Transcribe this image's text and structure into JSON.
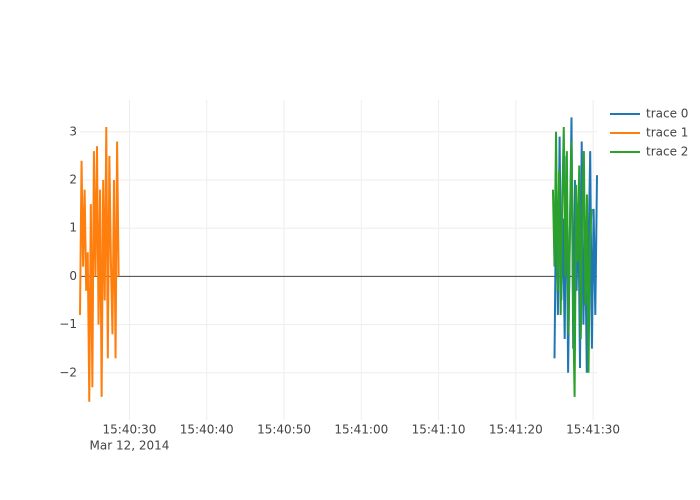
{
  "chart_data": {
    "type": "line",
    "x_date_label": "Mar 12, 2014",
    "xlim": [
      "2014-03-12T15:40:23.6",
      "2014-03-12T15:41:30.5"
    ],
    "xticks": [
      {
        "value": "2014-03-12T15:40:30",
        "label": "15:40:30"
      },
      {
        "value": "2014-03-12T15:40:40",
        "label": "15:40:40"
      },
      {
        "value": "2014-03-12T15:40:50",
        "label": "15:40:50"
      },
      {
        "value": "2014-03-12T15:41:00",
        "label": "15:41:00"
      },
      {
        "value": "2014-03-12T15:41:10",
        "label": "15:41:10"
      },
      {
        "value": "2014-03-12T15:41:20",
        "label": "15:41:20"
      },
      {
        "value": "2014-03-12T15:41:30",
        "label": "15:41:30"
      }
    ],
    "ylim": [
      -2.98,
      3.66
    ],
    "yticks": [
      {
        "value": -2,
        "label": "−2"
      },
      {
        "value": -1,
        "label": "−1"
      },
      0,
      1,
      2,
      3
    ],
    "grid": true,
    "zeroline": true,
    "legend": "top-right",
    "series": [
      {
        "name": "trace 0",
        "color": "#1f77b4",
        "x": [
          "2014-03-12T15:41:25.00",
          "2014-03-12T15:41:25.22",
          "2014-03-12T15:41:25.44",
          "2014-03-12T15:41:25.66",
          "2014-03-12T15:41:25.88",
          "2014-03-12T15:41:26.10",
          "2014-03-12T15:41:26.32",
          "2014-03-12T15:41:26.54",
          "2014-03-12T15:41:26.76",
          "2014-03-12T15:41:26.98",
          "2014-03-12T15:41:27.20",
          "2014-03-12T15:41:27.42",
          "2014-03-12T15:41:27.64",
          "2014-03-12T15:41:27.86",
          "2014-03-12T15:41:28.08",
          "2014-03-12T15:41:28.30",
          "2014-03-12T15:41:28.52",
          "2014-03-12T15:41:28.74",
          "2014-03-12T15:41:28.96",
          "2014-03-12T15:41:29.18",
          "2014-03-12T15:41:29.40",
          "2014-03-12T15:41:29.62",
          "2014-03-12T15:41:29.84",
          "2014-03-12T15:41:30.06",
          "2014-03-12T15:41:30.28",
          "2014-03-12T15:41:30.50"
        ],
        "values": [
          -1.7,
          1.8,
          -0.8,
          2.9,
          -0.5,
          1.2,
          -1.3,
          2.5,
          -2.0,
          0.8,
          3.3,
          -1.5,
          2.0,
          -0.3,
          1.5,
          -1.9,
          2.8,
          -1.0,
          1.0,
          -2.0,
          0.5,
          2.6,
          -1.5,
          1.4,
          -0.8,
          2.1
        ]
      },
      {
        "name": "trace 1",
        "color": "#ff7f0e",
        "x": [
          "2014-03-12T15:40:23.6",
          "2014-03-12T15:40:23.8",
          "2014-03-12T15:40:24.0",
          "2014-03-12T15:40:24.2",
          "2014-03-12T15:40:24.4",
          "2014-03-12T15:40:24.6",
          "2014-03-12T15:40:24.8",
          "2014-03-12T15:40:25.0",
          "2014-03-12T15:40:25.2",
          "2014-03-12T15:40:25.4",
          "2014-03-12T15:40:25.6",
          "2014-03-12T15:40:25.8",
          "2014-03-12T15:40:26.0",
          "2014-03-12T15:40:26.2",
          "2014-03-12T15:40:26.4",
          "2014-03-12T15:40:26.6",
          "2014-03-12T15:40:26.8",
          "2014-03-12T15:40:27.0",
          "2014-03-12T15:40:27.2",
          "2014-03-12T15:40:27.4",
          "2014-03-12T15:40:27.6",
          "2014-03-12T15:40:27.8",
          "2014-03-12T15:40:28.0",
          "2014-03-12T15:40:28.2",
          "2014-03-12T15:40:28.4",
          "2014-03-12T15:40:28.6"
        ],
        "values": [
          -0.8,
          2.4,
          0.2,
          1.8,
          -0.3,
          0.5,
          -2.6,
          1.5,
          -2.3,
          2.6,
          0.0,
          2.7,
          -1.0,
          1.8,
          -2.5,
          2.0,
          -0.5,
          3.1,
          -1.7,
          2.5,
          0.3,
          -1.2,
          2.0,
          -1.7,
          2.8,
          0.0
        ]
      },
      {
        "name": "trace 2",
        "color": "#2ca02c",
        "x": [
          "2014-03-12T15:41:24.8",
          "2014-03-12T15:41:25.0",
          "2014-03-12T15:41:25.2",
          "2014-03-12T15:41:25.4",
          "2014-03-12T15:41:25.6",
          "2014-03-12T15:41:25.8",
          "2014-03-12T15:41:26.0",
          "2014-03-12T15:41:26.2",
          "2014-03-12T15:41:26.4",
          "2014-03-12T15:41:26.6",
          "2014-03-12T15:41:26.8",
          "2014-03-12T15:41:27.0",
          "2014-03-12T15:41:27.2",
          "2014-03-12T15:41:27.4",
          "2014-03-12T15:41:27.6",
          "2014-03-12T15:41:27.8",
          "2014-03-12T15:41:28.0",
          "2014-03-12T15:41:28.2",
          "2014-03-12T15:41:28.4",
          "2014-03-12T15:41:28.6",
          "2014-03-12T15:41:28.8",
          "2014-03-12T15:41:29.0",
          "2014-03-12T15:41:29.2",
          "2014-03-12T15:41:29.4",
          "2014-03-12T15:41:29.6",
          "2014-03-12T15:41:29.8"
        ],
        "values": [
          1.8,
          0.2,
          3.0,
          -0.3,
          2.2,
          -0.8,
          1.5,
          3.1,
          0.0,
          2.6,
          -1.2,
          1.0,
          2.8,
          -0.5,
          -2.5,
          1.9,
          0.3,
          2.3,
          -1.3,
          1.1,
          2.6,
          -0.6,
          1.7,
          -2.0,
          0.8,
          1.4
        ]
      }
    ]
  }
}
